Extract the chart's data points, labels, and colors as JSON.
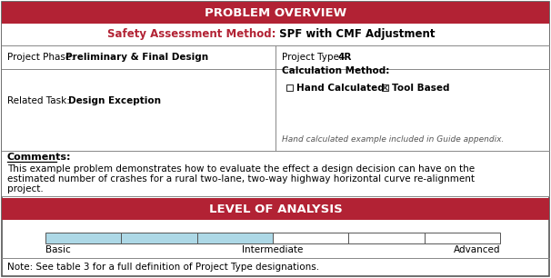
{
  "title": "PROBLEM OVERVIEW",
  "title_bg": "#b22234",
  "title_color": "#ffffff",
  "sam_label": "Safety Assessment Method:",
  "sam_label_color": "#b22234",
  "sam_value": " SPF with CMF Adjustment",
  "sam_value_color": "#000000",
  "project_phase_label": "Project Phase:  ",
  "project_phase_value": "Preliminary & Final Design",
  "project_type_label": "Project Type: ",
  "project_type_value": "4R",
  "related_task_label": "Related Task: ",
  "related_task_value": "Design Exception",
  "calc_method_title": "Calculation Method:",
  "hand_calc_label": "Hand Calculated",
  "tool_based_label": "Tool Based",
  "appendix_note": "Hand calculated example included in Guide appendix.",
  "comments_label": "Comments:",
  "comments_text1": "This example problem demonstrates how to evaluate the effect a design decision can have on the",
  "comments_text2": "estimated number of crashes for a rural two-lane, two-way highway horizontal curve re-alignment",
  "comments_text3": "project.",
  "loa_title": "LEVEL OF ANALYSIS",
  "loa_bg": "#b22234",
  "loa_title_color": "#ffffff",
  "bar_highlight_color": "#add8e6",
  "bar_segments": 6,
  "bar_highlight_count": 3,
  "basic_label": "Basic",
  "intermediate_label": "Intermediate",
  "advanced_label": "Advanced",
  "note_text": "Note: See table 3 for a full definition of Project Type designations.",
  "outer_border_color": "#555555",
  "inner_line_color": "#888888",
  "bg_color": "#ffffff",
  "font_family": "DejaVu Sans"
}
